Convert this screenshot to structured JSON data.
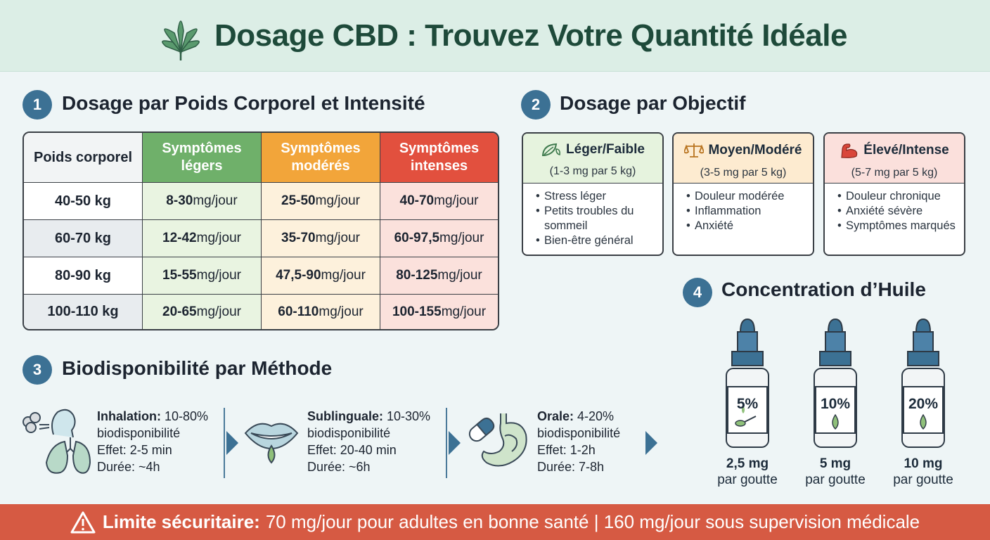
{
  "header": {
    "title": "Dosage CBD : Trouvez Votre Quantité Idéale",
    "icon": "cannabis-leaf-icon"
  },
  "section1": {
    "number": "1",
    "title": "Dosage par Poids Corporel et Intensité",
    "columns": [
      "Poids corporel",
      "Symptômes légers",
      "Symptômes modérés",
      "Symptômes intenses"
    ],
    "rows": [
      {
        "weight": "40-50 kg",
        "light_num": "8-30",
        "moderate_num": "25-50",
        "intense_num": "40-70"
      },
      {
        "weight": "60-70 kg",
        "light_num": "12-42",
        "moderate_num": "35-70",
        "intense_num": "60-97,5"
      },
      {
        "weight": "80-90 kg",
        "light_num": "15-55",
        "moderate_num": "47,5-90",
        "intense_num": "80-125"
      },
      {
        "weight": "100-110 kg",
        "light_num": "20-65",
        "moderate_num": "60-110",
        "intense_num": "100-155"
      }
    ],
    "unit": " mg/jour"
  },
  "section2": {
    "number": "2",
    "title": "Dosage par Objectif",
    "cards": [
      {
        "title": "Léger/Faible",
        "sub": "(1-3 mg par 5 kg)",
        "icon": "leaf-icon",
        "items": [
          "Stress léger",
          "Petits troubles du sommeil",
          "Bien-être général"
        ]
      },
      {
        "title": "Moyen/Modéré",
        "sub": "(3-5 mg par 5 kg)",
        "icon": "balance-scale-icon",
        "items": [
          "Douleur modérée",
          "Inflammation",
          "Anxiété"
        ]
      },
      {
        "title": "Élevé/Intense",
        "sub": "(5-7 mg par 5 kg)",
        "icon": "flexed-arm-icon",
        "items": [
          "Douleur chronique",
          "Anxiété sévère",
          "Symptômes marqués"
        ]
      }
    ]
  },
  "section3": {
    "number": "3",
    "title": "Biodisponibilité par Méthode",
    "methods": [
      {
        "name": "Inhalation:",
        "pct": " 10-80%",
        "bio": "biodisponibilité",
        "effect": "Effet: 2-5 min",
        "duration": "Durée: ~4h",
        "icon": "lungs-icon"
      },
      {
        "name": "Sublinguale:",
        "pct": " 10-30%",
        "bio": "biodisponibilité",
        "effect": "Effet: 20-40 min",
        "duration": "Durée: ~6h",
        "icon": "mouth-drop-icon"
      },
      {
        "name": "Orale:",
        "pct": " 4-20%",
        "bio": "biodisponibilité",
        "effect": "Effet: 1-2h",
        "duration": "Durée: 7-8h",
        "icon": "capsule-stomach-icon"
      }
    ]
  },
  "section4": {
    "number": "4",
    "title": "Concentration d’Huile",
    "bottles": [
      {
        "pct": "5%",
        "mg": "2,5 mg",
        "per": "par goutte",
        "icon": "dropper-bottle-spoon-icon"
      },
      {
        "pct": "10%",
        "mg": "5 mg",
        "per": "par goutte",
        "icon": "dropper-bottle-drop-icon"
      },
      {
        "pct": "20%",
        "mg": "10 mg",
        "per": "par goutte",
        "icon": "dropper-bottle-drop-icon"
      }
    ]
  },
  "footer": {
    "label": "Limite sécuritaire:",
    "text": "70 mg/jour pour adultes en bonne santé | 160 mg/jour sous supervision médicale",
    "icon": "warning-triangle-icon"
  },
  "colors": {
    "light": "#6fb06a",
    "moderate": "#f2a53a",
    "intense": "#e2503e",
    "accent": "#3c7194",
    "footer": "#d65a43"
  }
}
